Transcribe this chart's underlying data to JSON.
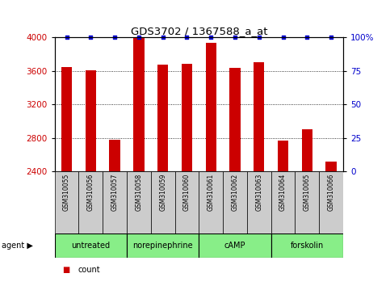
{
  "title": "GDS3702 / 1367588_a_at",
  "samples": [
    "GSM310055",
    "GSM310056",
    "GSM310057",
    "GSM310058",
    "GSM310059",
    "GSM310060",
    "GSM310061",
    "GSM310062",
    "GSM310063",
    "GSM310064",
    "GSM310065",
    "GSM310066"
  ],
  "counts": [
    3640,
    3610,
    2780,
    3990,
    3670,
    3680,
    3930,
    3630,
    3700,
    2770,
    2900,
    2520
  ],
  "agents": [
    {
      "label": "untreated",
      "start": 0,
      "end": 3
    },
    {
      "label": "norepinephrine",
      "start": 3,
      "end": 6
    },
    {
      "label": "cAMP",
      "start": 6,
      "end": 9
    },
    {
      "label": "forskolin",
      "start": 9,
      "end": 12
    }
  ],
  "bar_color": "#cc0000",
  "dot_color": "#0000cc",
  "ylim_left": [
    2400,
    4000
  ],
  "ylim_right": [
    0,
    100
  ],
  "yticks_left": [
    2400,
    2800,
    3200,
    3600,
    4000
  ],
  "yticks_right": [
    0,
    25,
    50,
    75,
    100
  ],
  "background_color": "#ffffff",
  "plot_bg": "#ffffff",
  "agent_bg": "#88ee88",
  "sample_box_color": "#cccccc",
  "bar_width": 0.45,
  "figsize": [
    4.83,
    3.54
  ],
  "dpi": 100
}
